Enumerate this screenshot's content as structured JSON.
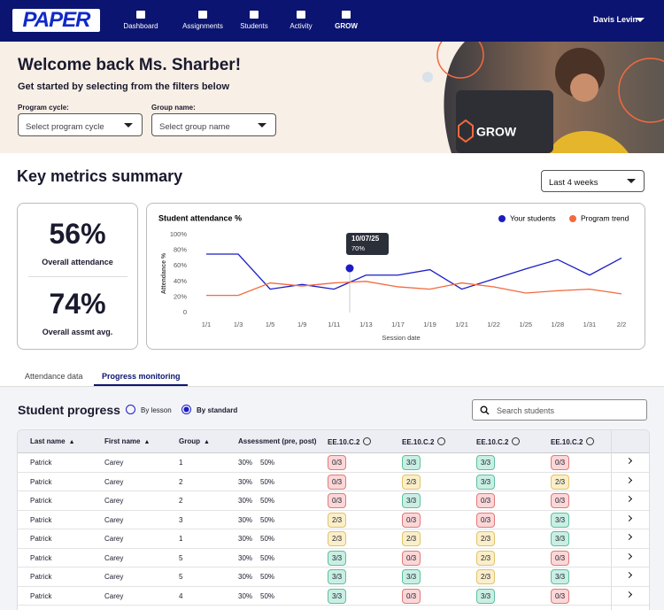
{
  "nav": {
    "logo": "PAPER",
    "items": [
      "Dashboard",
      "Assignments",
      "Students",
      "Activity",
      "GROW"
    ],
    "user": "Davis Levin"
  },
  "hero": {
    "title": "Welcome back Ms. Sharber!",
    "subtitle": "Get started by selecting from the filters below",
    "filters": [
      {
        "label": "Program cycle:",
        "placeholder": "Select program cycle"
      },
      {
        "label": "Group name:",
        "placeholder": "Select group name"
      }
    ],
    "brand": "GROW"
  },
  "metrics": {
    "title": "Key metrics summary",
    "period": "Last 4 weeks",
    "cards": [
      {
        "value": "56%",
        "label": "Overall attendance"
      },
      {
        "value": "74%",
        "label": "Overall assmt avg."
      }
    ]
  },
  "chart_data": {
    "type": "line",
    "title": "Student attendance %",
    "x_label": "Session date",
    "y_label": "Attendance %",
    "categories": [
      "1/1",
      "1/3",
      "1/5",
      "1/9",
      "1/11",
      "1/13",
      "1/17",
      "1/19",
      "1/21",
      "1/22",
      "1/25",
      "1/28",
      "1/31",
      "2/2"
    ],
    "series": [
      {
        "name": "Your students",
        "color": "#1c1cc4",
        "values": [
          75,
          75,
          30,
          36,
          30,
          48,
          48,
          55,
          30,
          43,
          56,
          68,
          48,
          70
        ]
      },
      {
        "name": "Program trend",
        "color": "#f26a3d",
        "values": [
          22,
          22,
          38,
          34,
          38,
          40,
          33,
          30,
          38,
          33,
          25,
          28,
          30,
          24
        ]
      }
    ],
    "ylim": [
      0,
      100
    ],
    "yticks": [
      0,
      {
        "value": 20,
        "label": "20%"
      },
      {
        "value": 40,
        "label": "40%"
      },
      {
        "value": 60,
        "label": "60%"
      },
      {
        "value": 80,
        "label": "80%"
      },
      {
        "value": 100,
        "label": "100%"
      }
    ],
    "grid": false,
    "legend": "top-right",
    "annotations": [
      "10/07/25",
      "70%"
    ]
  },
  "tabs": [
    "Attendance data",
    "Progress monitoring"
  ],
  "progress": {
    "title": "Student progress",
    "options": [
      "By lesson",
      "By standard"
    ],
    "search": "Search students",
    "headers": [
      "Last name",
      "First name",
      "Group",
      "Assessment (pre, post)",
      "EE.10.C.2",
      "EE.10.C.2",
      "EE.10.C.2",
      "EE.10.C.2"
    ],
    "rows": [
      [
        "Patrick",
        "Carey",
        "1",
        "30%",
        "50%",
        "0/3",
        "3/3",
        "3/3",
        "0/3"
      ],
      [
        "Patrick",
        "Carey",
        "2",
        "30%",
        "50%",
        "0/3",
        "2/3",
        "3/3",
        "2/3"
      ],
      [
        "Patrick",
        "Carey",
        "2",
        "30%",
        "50%",
        "0/3",
        "3/3",
        "0/3",
        "0/3"
      ],
      [
        "Patrick",
        "Carey",
        "3",
        "30%",
        "50%",
        "2/3",
        "0/3",
        "0/3",
        "3/3"
      ],
      [
        "Patrick",
        "Carey",
        "1",
        "30%",
        "50%",
        "2/3",
        "2/3",
        "2/3",
        "3/3"
      ],
      [
        "Patrick",
        "Carey",
        "5",
        "30%",
        "50%",
        "3/3",
        "0/3",
        "2/3",
        "0/3"
      ],
      [
        "Patrick",
        "Carey",
        "5",
        "30%",
        "50%",
        "3/3",
        "3/3",
        "2/3",
        "3/3"
      ],
      [
        "Patrick",
        "Carey",
        "4",
        "30%",
        "50%",
        "3/3",
        "0/3",
        "3/3",
        "0/3"
      ]
    ]
  }
}
